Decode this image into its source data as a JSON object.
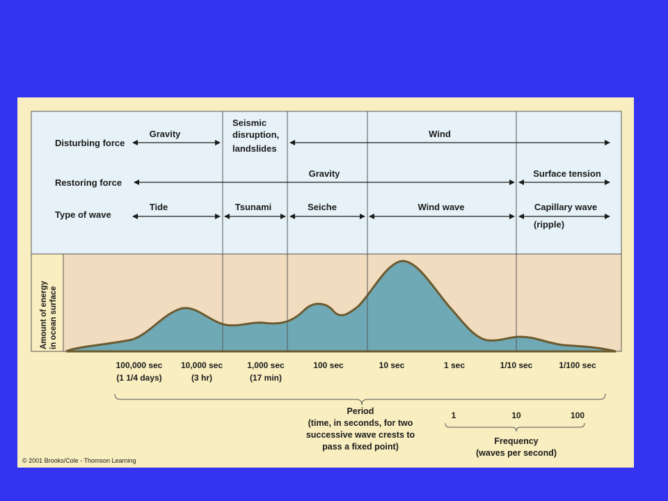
{
  "colors": {
    "slide_bg": "#3333f0",
    "panel_bg": "#f8eec0",
    "top_band": "#e6f2f8",
    "energy_band": "#f2dcc0",
    "curve_fill": "#6fa9b6",
    "curve_stroke": "#6b5a2e"
  },
  "rows": {
    "disturbing": "Disturbing force",
    "restoring": "Restoring force",
    "type": "Type of wave"
  },
  "disturbing_forces": {
    "gravity": "Gravity",
    "seismic_1": "Seismic",
    "seismic_2": "disruption,",
    "seismic_3": "landslides",
    "wind": "Wind"
  },
  "restoring_forces": {
    "gravity": "Gravity",
    "surface_tension": "Surface tension"
  },
  "wave_types": {
    "tide": "Tide",
    "tsunami": "Tsunami",
    "seiche": "Seiche",
    "wind_wave": "Wind wave",
    "capillary_1": "Capillary wave",
    "capillary_2": "(ripple)"
  },
  "y_label": {
    "line1": "Amount of energy",
    "line2": "in ocean surface"
  },
  "period_ticks": [
    {
      "label": "100,000 sec",
      "sub": "(1 1/4 days)"
    },
    {
      "label": "10,000 sec",
      "sub": "(3 hr)"
    },
    {
      "label": "1,000 sec",
      "sub": "(17 min)"
    },
    {
      "label": "100 sec",
      "sub": ""
    },
    {
      "label": "10 sec",
      "sub": ""
    },
    {
      "label": "1 sec",
      "sub": ""
    },
    {
      "label": "1/10 sec",
      "sub": ""
    },
    {
      "label": "1/100 sec",
      "sub": ""
    }
  ],
  "period_caption": {
    "line1": "Period",
    "line2": "(time, in seconds, for two",
    "line3": "successive wave crests to",
    "line4": "pass a fixed point)"
  },
  "frequency_ticks": [
    "1",
    "10",
    "100"
  ],
  "frequency_caption": {
    "line1": "Frequency",
    "line2": "(waves per second)"
  },
  "copyright": "© 2001 Brooks/Cole - Thomson Learning"
}
